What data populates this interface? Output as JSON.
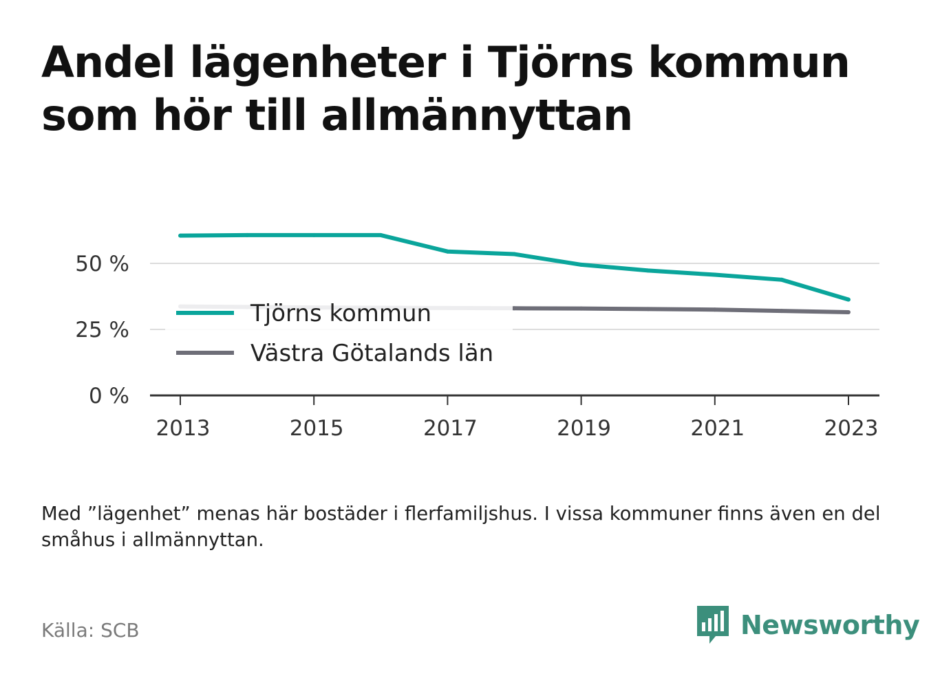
{
  "title": "Andel lägenheter i Tjörns kommun som hör till allmännyttan",
  "note": "Med ”lägenhet” menas här bostäder i flerfamiljshus. I vissa kommuner finns även en del småhus i allmännyttan.",
  "source": "Källa: SCB",
  "brand": {
    "name": "Newsworthy",
    "icon": "newsworthy-logo-icon",
    "color": "#3c8f7c"
  },
  "chart_data": {
    "type": "line",
    "x": [
      2013,
      2014,
      2015,
      2016,
      2017,
      2018,
      2019,
      2020,
      2021,
      2022,
      2023
    ],
    "x_ticks": [
      "2013",
      "2015",
      "2017",
      "2019",
      "2021",
      "2023"
    ],
    "y_ticks": [
      "0 %",
      "25 %",
      "50 %"
    ],
    "ylim": [
      0,
      62
    ],
    "grid": true,
    "legend_position": "center-left",
    "series": [
      {
        "name": "Tjörns kommun",
        "color": "#0aa59b",
        "values": [
          60.5,
          60.7,
          60.7,
          60.7,
          54.5,
          53.5,
          49.5,
          47.3,
          45.7,
          43.8,
          36.3
        ]
      },
      {
        "name": "Västra Götalands län",
        "color": "#6e6e78",
        "values": [
          33.7,
          33.5,
          33.3,
          33.2,
          33.1,
          33.0,
          32.9,
          32.7,
          32.5,
          32.0,
          31.5
        ]
      }
    ]
  }
}
